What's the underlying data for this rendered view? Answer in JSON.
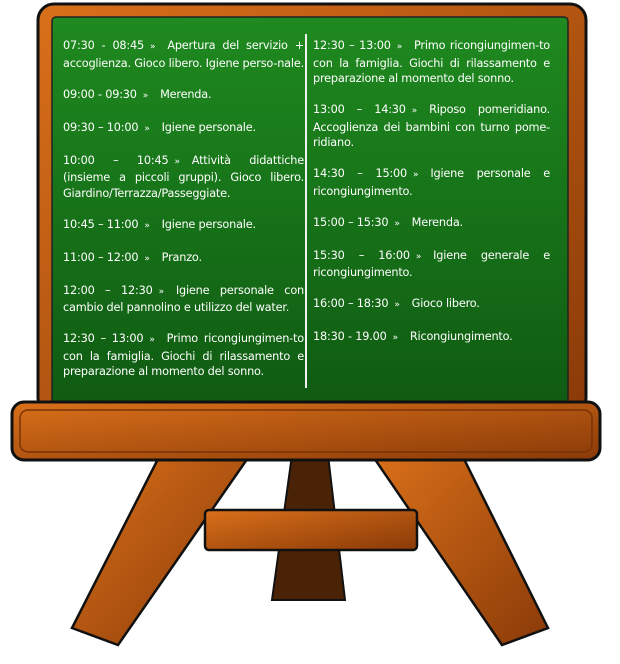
{
  "colors": {
    "board": "#1a7a1a",
    "frame": "#b0520c",
    "legs": "#a84a0a",
    "chalk": "#ffffff"
  },
  "arrow_symbol": "»",
  "schedule": {
    "left": [
      {
        "time": "07:30 - 08:45",
        "text": "Apertura del servizio + accoglienza. Gioco libero. Igiene perso-nale."
      },
      {
        "time": "09:00 - 09:30",
        "text": "Merenda."
      },
      {
        "time": "09:30 – 10:00",
        "text": "Igiene personale."
      },
      {
        "time": "10:00 – 10:45",
        "text": "Attività didattiche (insieme a piccoli gruppi). Gioco libero. Giardino/Terrazza/Passeggiate."
      },
      {
        "time": "10:45 – 11:00",
        "text": "Igiene personale."
      },
      {
        "time": "11:00 – 12:00",
        "text": "Pranzo."
      },
      {
        "time": "12:00 – 12:30",
        "text": "Igiene personale con cambio del pannolino e utilizzo del water."
      },
      {
        "time": "12:30 – 13:00",
        "text": "Primo ricongiungimen-to con la famiglia. Giochi di rilassamento e preparazione al momento del sonno."
      }
    ],
    "right": [
      {
        "time": "12:30 – 13:00",
        "text": "Primo ricongiungimen-to con la famiglia. Giochi di rilassamento e preparazione al momento del sonno."
      },
      {
        "time": "13:00 – 14:30",
        "text": "Riposo pomeridiano. Accoglienza dei bambini con turno pome-ridiano."
      },
      {
        "time": "14:30 – 15:00",
        "text": "Igiene personale e ricongiungimento."
      },
      {
        "time": "15:00 – 15:30",
        "text": "Merenda."
      },
      {
        "time": "15:30 – 16:00",
        "text": "Igiene generale e ricongiungimento."
      },
      {
        "time": "16:00 – 18:30",
        "text": "Gioco libero."
      },
      {
        "time": "18:30 - 19.00",
        "text": "Ricongiungimento."
      }
    ]
  }
}
